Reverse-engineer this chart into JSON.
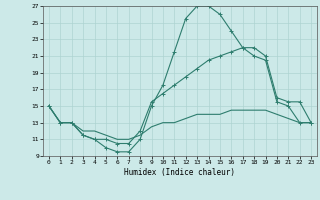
{
  "xlabel": "Humidex (Indice chaleur)",
  "xlim": [
    -0.5,
    23.5
  ],
  "ylim": [
    9,
    27
  ],
  "yticks": [
    9,
    11,
    13,
    15,
    17,
    19,
    21,
    23,
    25,
    27
  ],
  "xticks": [
    0,
    1,
    2,
    3,
    4,
    5,
    6,
    7,
    8,
    9,
    10,
    11,
    12,
    13,
    14,
    15,
    16,
    17,
    18,
    19,
    20,
    21,
    22,
    23
  ],
  "line_color": "#2e7d6e",
  "bg_color": "#cce9e8",
  "grid_color": "#aed4d2",
  "line1_x": [
    0,
    1,
    2,
    3,
    4,
    5,
    6,
    7,
    8,
    9,
    10,
    11,
    12,
    13,
    14,
    15,
    16,
    17,
    18,
    19,
    20,
    21,
    22,
    23
  ],
  "line1_y": [
    15,
    13,
    13,
    11.5,
    11,
    10,
    9.5,
    9.5,
    11,
    15,
    17.5,
    21.5,
    25.5,
    27,
    27,
    26,
    24,
    22,
    21,
    20.5,
    15.5,
    15,
    13,
    13
  ],
  "line2_x": [
    0,
    1,
    2,
    3,
    4,
    5,
    6,
    7,
    8,
    9,
    10,
    11,
    12,
    13,
    14,
    15,
    16,
    17,
    18,
    19,
    20,
    21,
    22,
    23
  ],
  "line2_y": [
    15,
    13,
    13,
    11.5,
    11,
    11,
    10.5,
    10.5,
    12,
    15.5,
    16.5,
    17.5,
    18.5,
    19.5,
    20.5,
    21,
    21.5,
    22,
    22,
    21,
    16,
    15.5,
    15.5,
    13
  ],
  "line3_x": [
    0,
    1,
    2,
    3,
    4,
    5,
    6,
    7,
    8,
    9,
    10,
    11,
    12,
    13,
    14,
    15,
    16,
    17,
    18,
    19,
    20,
    21,
    22,
    23
  ],
  "line3_y": [
    15,
    13,
    13,
    12,
    12,
    11.5,
    11,
    11,
    11.5,
    12.5,
    13,
    13,
    13.5,
    14,
    14,
    14,
    14.5,
    14.5,
    14.5,
    14.5,
    14,
    13.5,
    13,
    13
  ]
}
